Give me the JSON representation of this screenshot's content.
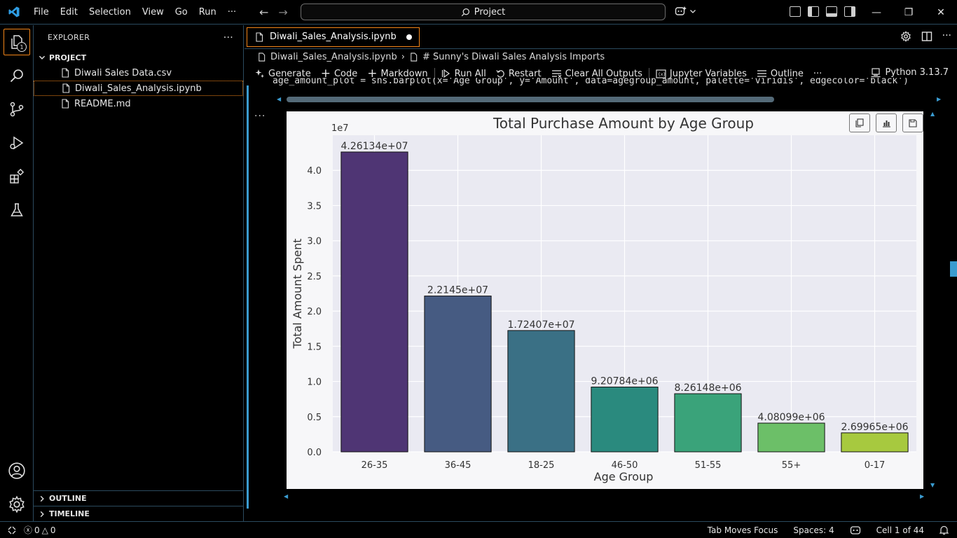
{
  "titlebar": {
    "menu": [
      "File",
      "Edit",
      "Selection",
      "View",
      "Go",
      "Run",
      "···"
    ],
    "search_text": "Project"
  },
  "activity": {
    "explorer_badge": "1"
  },
  "sidebar": {
    "title": "EXPLORER",
    "more": "···",
    "section": "PROJECT",
    "files": [
      "Diwali Sales Data.csv",
      "Diwali_Sales_Analysis.ipynb",
      "README.md"
    ],
    "outline": "OUTLINE",
    "timeline": "TIMELINE"
  },
  "editor": {
    "tab_label": "Diwali_Sales_Analysis.ipynb",
    "breadcrumb_file": "Diwali_Sales_Analysis.ipynb",
    "breadcrumb_cell": "# Sunny's Diwali Sales Analysis Imports",
    "toolbar": {
      "generate": "Generate",
      "code": "Code",
      "markdown": "Markdown",
      "run_all": "Run All",
      "restart": "Restart",
      "clear_outputs": "Clear All Outputs",
      "jupyter_variables": "Jupyter Variables",
      "outline": "Outline",
      "more": "···",
      "kernel": "Python 3.13.7"
    },
    "code_peek": "age_amount_plot = sns.barplot(x='Age Group', y='Amount', data=agegroup_amount, palette='viridis', edgecolor='black')",
    "cell_menu": "···"
  },
  "chart_data": {
    "type": "bar",
    "title": "Total Purchase Amount by Age Group",
    "xlabel": "Age Group",
    "ylabel": "Total Amount Spent",
    "offset_label": "1e7",
    "categories": [
      "26-35",
      "36-45",
      "18-25",
      "46-50",
      "51-55",
      "55+",
      "0-17"
    ],
    "values": [
      42613400,
      22145000,
      17240700,
      9207840,
      8261480,
      4080990,
      2699650
    ],
    "data_labels": [
      "4.26134e+07",
      "2.2145e+07",
      "1.72407e+07",
      "9.20784e+06",
      "8.26148e+06",
      "4.08099e+06",
      "2.69965e+06"
    ],
    "yticks": [
      "0.0",
      "0.5",
      "1.0",
      "1.5",
      "2.0",
      "2.5",
      "3.0",
      "3.5",
      "4.0"
    ],
    "ytick_values": [
      0,
      5000000,
      10000000,
      15000000,
      20000000,
      25000000,
      30000000,
      35000000,
      40000000
    ],
    "ylim": [
      0,
      45000000
    ],
    "colors": [
      "#4f3574",
      "#465b82",
      "#3a7085",
      "#2a8a7e",
      "#3aa37a",
      "#6cbf68",
      "#a7c93f"
    ],
    "grid": true,
    "background": "#eaeaf2"
  },
  "statusbar": {
    "errors": "0",
    "warnings": "0",
    "tab_focus": "Tab Moves Focus",
    "spaces": "Spaces: 4",
    "cell": "Cell 1 of 44"
  }
}
